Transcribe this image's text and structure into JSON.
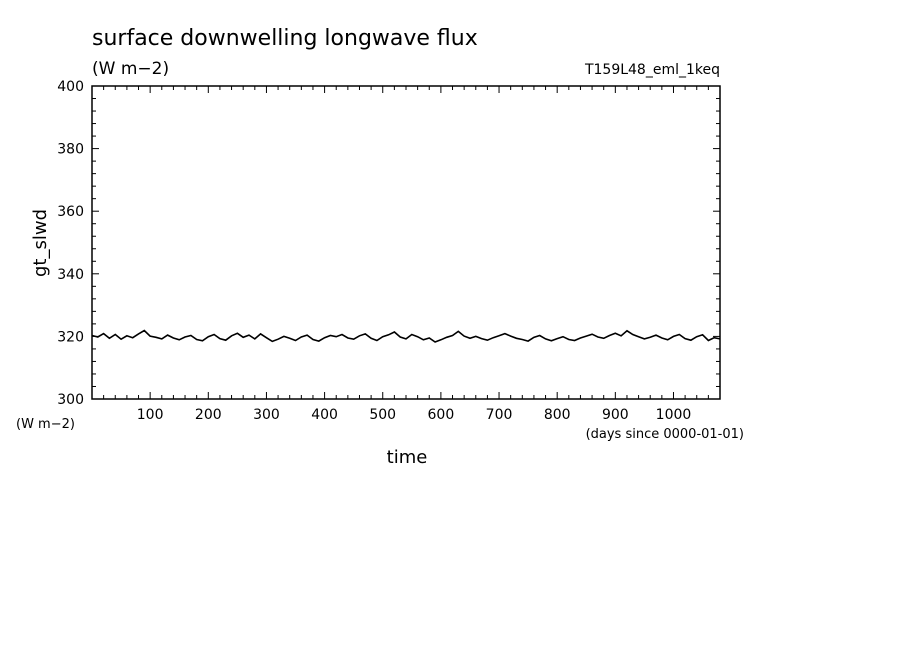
{
  "header": {
    "title": "surface downwelling longwave flux",
    "units": "(W m−2)",
    "experiment": "T159L48_eml_1keq"
  },
  "axes": {
    "ylabel": "gt_slwd",
    "yunits": "(W m−2)",
    "xlabel": "time",
    "xunits": "(days since 0000-01-01)"
  },
  "chart_data": {
    "type": "line",
    "title": "surface downwelling longwave flux",
    "xlabel": "time",
    "ylabel": "gt_slwd",
    "xlim": [
      0,
      1080
    ],
    "ylim": [
      300,
      400
    ],
    "x_ticks": [
      100,
      200,
      300,
      400,
      500,
      600,
      700,
      800,
      900,
      1000
    ],
    "y_ticks": [
      300,
      320,
      340,
      360,
      380,
      400
    ],
    "grid": false,
    "series": [
      {
        "x": [
          0,
          10,
          20,
          30,
          40,
          50,
          60,
          70,
          80,
          90,
          100,
          110,
          120,
          130,
          140,
          150,
          160,
          170,
          180,
          190,
          200,
          210,
          220,
          230,
          240,
          250,
          260,
          270,
          280,
          290,
          300,
          310,
          320,
          330,
          340,
          350,
          360,
          370,
          380,
          390,
          400,
          410,
          420,
          430,
          440,
          450,
          460,
          470,
          480,
          490,
          500,
          510,
          520,
          530,
          540,
          550,
          560,
          570,
          580,
          590,
          600,
          610,
          620,
          630,
          640,
          650,
          660,
          670,
          680,
          690,
          700,
          710,
          720,
          730,
          740,
          750,
          760,
          770,
          780,
          790,
          800,
          810,
          820,
          830,
          840,
          850,
          860,
          870,
          880,
          890,
          900,
          910,
          920,
          930,
          940,
          950,
          960,
          970,
          980,
          990,
          1000,
          1010,
          1020,
          1030,
          1040,
          1050,
          1060,
          1070,
          1080
        ],
        "y": [
          320.3,
          319.8,
          320.9,
          319.4,
          320.6,
          319.1,
          320.2,
          319.6,
          320.8,
          321.9,
          320.1,
          319.7,
          319.2,
          320.4,
          319.5,
          318.9,
          319.8,
          320.3,
          319.0,
          318.6,
          319.9,
          320.6,
          319.3,
          318.8,
          320.2,
          321.0,
          319.7,
          320.4,
          319.2,
          320.8,
          319.6,
          318.4,
          319.1,
          320.0,
          319.4,
          318.7,
          319.8,
          320.4,
          319.0,
          318.5,
          319.6,
          320.3,
          319.9,
          320.6,
          319.5,
          319.1,
          320.2,
          320.8,
          319.4,
          318.7,
          319.9,
          320.5,
          321.4,
          319.8,
          319.2,
          320.6,
          319.9,
          318.9,
          319.5,
          318.2,
          318.9,
          319.7,
          320.3,
          321.6,
          320.1,
          319.4,
          320.0,
          319.3,
          318.8,
          319.6,
          320.2,
          320.9,
          320.1,
          319.4,
          319.0,
          318.5,
          319.7,
          320.3,
          319.2,
          318.6,
          319.3,
          319.9,
          319.0,
          318.7,
          319.5,
          320.1,
          320.7,
          319.8,
          319.4,
          320.3,
          321.0,
          320.2,
          321.8,
          320.6,
          319.9,
          319.2,
          319.7,
          320.4,
          319.5,
          318.9,
          320.0,
          320.6,
          319.3,
          318.8,
          319.9,
          320.5,
          318.7,
          319.6,
          319.2
        ]
      }
    ]
  }
}
